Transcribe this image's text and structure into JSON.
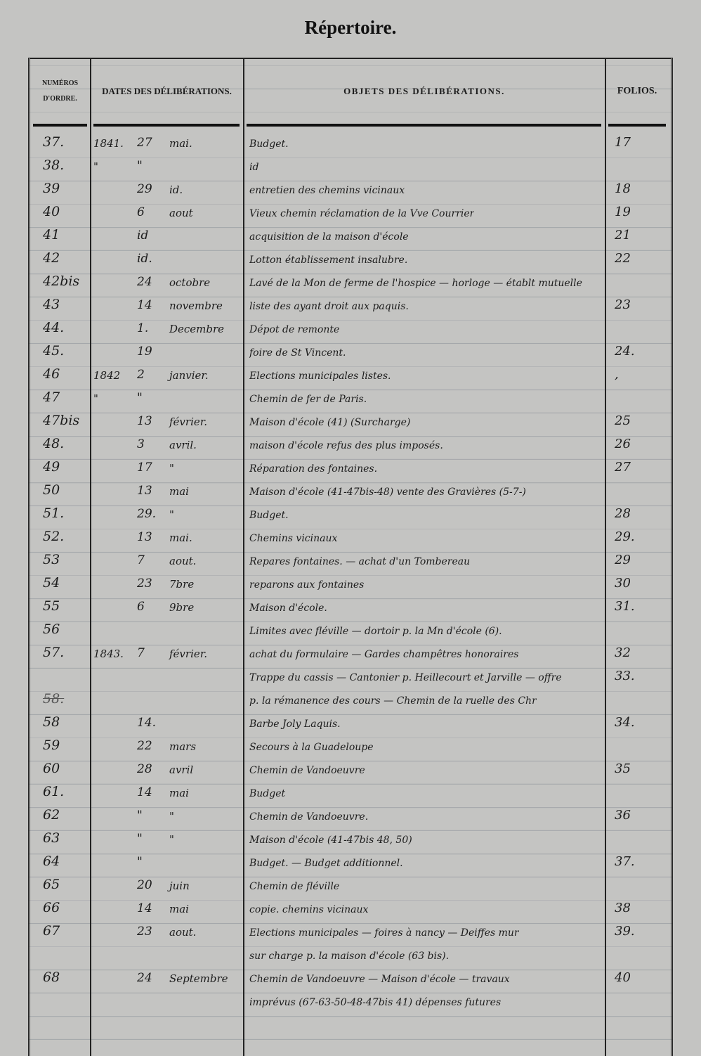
{
  "title": "Répertoire.",
  "columns": {
    "numeros": "NUMÉROS D'ORDRE.",
    "dates": "DATES DES DÉLIBÉRATIONS.",
    "objets": "OBJETS DES DÉLIBÉRATIONS.",
    "folios": "FOLIOS."
  },
  "rows": [
    {
      "num": "37.",
      "year": "1841.",
      "day": "27",
      "month": "mai.",
      "object": "Budget.",
      "folio": "17"
    },
    {
      "num": "38.",
      "year": "\"",
      "day": "\"",
      "month": "",
      "object": "id",
      "folio": ""
    },
    {
      "num": "39",
      "year": "",
      "day": "29",
      "month": "id.",
      "object": "entretien des chemins vicinaux",
      "folio": "18"
    },
    {
      "num": "40",
      "year": "",
      "day": "6",
      "month": "aout",
      "object": "Vieux chemin réclamation de la Vve Courrier",
      "folio": "19"
    },
    {
      "num": "41",
      "year": "",
      "day": "id",
      "month": "",
      "object": "acquisition de la maison d'école",
      "folio": "21"
    },
    {
      "num": "42",
      "year": "",
      "day": "id.",
      "month": "",
      "object": "Lotton établissement insalubre.",
      "folio": "22"
    },
    {
      "num": "42bis",
      "year": "",
      "day": "24",
      "month": "octobre",
      "object": "Lavé de la Mon de ferme de l'hospice — horloge — établt mutuelle",
      "folio": ""
    },
    {
      "num": "43",
      "year": "",
      "day": "14",
      "month": "novembre",
      "object": "liste des ayant droit aux paquis.",
      "folio": "23"
    },
    {
      "num": "44.",
      "year": "",
      "day": "1.",
      "month": "Decembre",
      "object": "Dépot de remonte",
      "folio": ""
    },
    {
      "num": "45.",
      "year": "",
      "day": "19",
      "month": "",
      "object": "foire de St Vincent.",
      "folio": "24."
    },
    {
      "num": "46",
      "year": "1842",
      "day": "2",
      "month": "janvier.",
      "object": "Elections municipales listes.",
      "folio": ","
    },
    {
      "num": "47",
      "year": "\"",
      "day": "\"",
      "month": "",
      "object": "Chemin de fer de Paris.",
      "folio": ""
    },
    {
      "num": "47bis",
      "year": "",
      "day": "13",
      "month": "février.",
      "object": "Maison d'école (41)          (Surcharge)",
      "folio": "25"
    },
    {
      "num": "48.",
      "year": "",
      "day": "3",
      "month": "avril.",
      "object": "maison d'école refus des plus imposés.",
      "folio": "26"
    },
    {
      "num": "49",
      "year": "",
      "day": "17",
      "month": "\"",
      "object": "Réparation des fontaines.",
      "folio": "27"
    },
    {
      "num": "50",
      "year": "",
      "day": "13",
      "month": "mai",
      "object": "Maison d'école (41-47bis-48) vente des Gravières (5-7-)",
      "folio": ""
    },
    {
      "num": "51.",
      "year": "",
      "day": "29.",
      "month": "\"",
      "object": "Budget.",
      "folio": "28"
    },
    {
      "num": "52.",
      "year": "",
      "day": "13",
      "month": "mai.",
      "object": "Chemins vicinaux",
      "folio": "29."
    },
    {
      "num": "53",
      "year": "",
      "day": "7",
      "month": "aout.",
      "object": "Repares fontaines. — achat d'un Tombereau",
      "folio": "29"
    },
    {
      "num": "54",
      "year": "",
      "day": "23",
      "month": "7bre",
      "object": "reparons aux fontaines",
      "folio": "30"
    },
    {
      "num": "55",
      "year": "",
      "day": "6",
      "month": "9bre",
      "object": "Maison d'école.",
      "folio": "31."
    },
    {
      "num": "56",
      "year": "",
      "day": "",
      "month": "",
      "object": "Limites avec fléville — dortoir p. la Mn d'école (6).",
      "folio": ""
    },
    {
      "num": "57.",
      "year": "1843.",
      "day": "7",
      "month": "février.",
      "object": "achat du formulaire — Gardes champêtres honoraires",
      "folio": "32"
    },
    {
      "num": "",
      "year": "",
      "day": "",
      "month": "",
      "object": "Trappe du cassis — Cantonier p. Heillecourt et Jarville — offre",
      "folio": "33."
    },
    {
      "num": "58.",
      "year": "",
      "day": "",
      "month": "",
      "object": "p. la rémanence des cours — Chemin de la ruelle des Chr",
      "folio": "",
      "struck": true
    },
    {
      "num": "58",
      "year": "",
      "day": "14.",
      "month": "",
      "object": "Barbe Joly Laquis.",
      "folio": "34."
    },
    {
      "num": "59",
      "year": "",
      "day": "22",
      "month": "mars",
      "object": "Secours à la Guadeloupe",
      "folio": ""
    },
    {
      "num": "60",
      "year": "",
      "day": "28",
      "month": "avril",
      "object": "Chemin de Vandoeuvre",
      "folio": "35"
    },
    {
      "num": "61.",
      "year": "",
      "day": "14",
      "month": "mai",
      "object": "Budget",
      "folio": ""
    },
    {
      "num": "62",
      "year": "",
      "day": "\"",
      "month": "\"",
      "object": "Chemin de Vandoeuvre.",
      "folio": "36"
    },
    {
      "num": "63",
      "year": "",
      "day": "\"",
      "month": "\"",
      "object": "Maison d'école (41-47bis 48, 50)",
      "folio": ""
    },
    {
      "num": "64",
      "year": "",
      "day": "\"",
      "month": "",
      "object": "Budget. —      Budget additionnel.",
      "folio": "37."
    },
    {
      "num": "65",
      "year": "",
      "day": "20",
      "month": "juin",
      "object": "Chemin de fléville",
      "folio": ""
    },
    {
      "num": "66",
      "year": "",
      "day": "14",
      "month": "mai",
      "object": "copie. chemins vicinaux",
      "folio": "38"
    },
    {
      "num": "67",
      "year": "",
      "day": "23",
      "month": "aout.",
      "object": "Elections municipales — foires à nancy — Deiffes mur",
      "folio": "39."
    },
    {
      "num": "",
      "year": "",
      "day": "",
      "month": "",
      "object": "sur charge p. la maison d'école (63 bis).",
      "folio": ""
    },
    {
      "num": "68",
      "year": "",
      "day": "24",
      "month": "Septembre",
      "object": "Chemin de Vandoeuvre — Maison d'école — travaux",
      "folio": "40"
    },
    {
      "num": "",
      "year": "",
      "day": "",
      "month": "",
      "object": "imprévus (67-63-50-48-47bis 41)  dépenses futures",
      "folio": ""
    }
  ]
}
